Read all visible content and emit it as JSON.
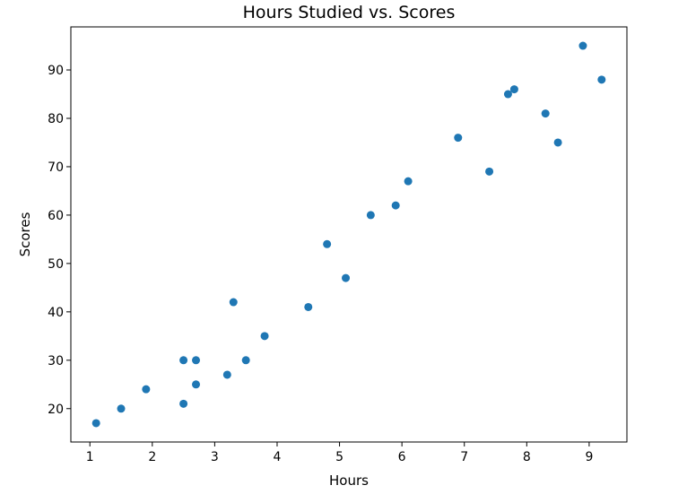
{
  "chart_data": {
    "type": "scatter",
    "title": "Hours Studied vs. Scores",
    "xlabel": "Hours",
    "ylabel": "Scores",
    "xlim": [
      0.695,
      9.605
    ],
    "ylim": [
      13.1,
      98.9
    ],
    "x_ticks": [
      1,
      2,
      3,
      4,
      5,
      6,
      7,
      8,
      9
    ],
    "y_ticks": [
      20,
      30,
      40,
      50,
      60,
      70,
      80,
      90
    ],
    "grid": false,
    "legend": "none",
    "marker_color": "#1f77b4",
    "x": [
      2.5,
      5.1,
      3.2,
      8.5,
      3.5,
      1.5,
      9.2,
      5.5,
      8.3,
      2.7,
      7.7,
      5.9,
      4.5,
      3.3,
      1.1,
      8.9,
      2.5,
      1.9,
      6.1,
      7.4,
      2.7,
      4.8,
      3.8,
      6.9,
      7.8
    ],
    "y": [
      21,
      47,
      27,
      75,
      30,
      20,
      88,
      60,
      81,
      25,
      85,
      62,
      41,
      42,
      17,
      95,
      30,
      24,
      67,
      69,
      30,
      54,
      35,
      76,
      86
    ]
  }
}
